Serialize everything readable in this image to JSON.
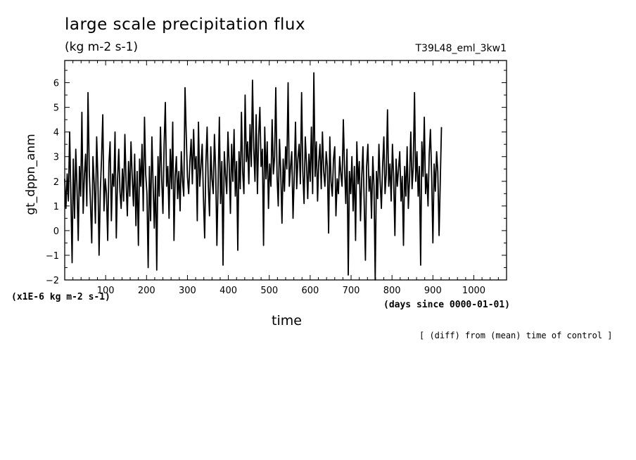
{
  "chart_data": {
    "type": "line",
    "title": "large scale precipitation flux",
    "units": "(kg m-2 s-1)",
    "run_label": "T39L48_eml_3kw1",
    "ylabel": "gt_dppn_anm",
    "xlabel": "time",
    "y_scale_label": "(x1E-6 kg m-2 s-1)",
    "x_units_label": "(days since 0000-01-01)",
    "note": "[ (diff) from (mean) time of control ]",
    "xlim": [
      0,
      1080
    ],
    "ylim": [
      -2,
      6.9
    ],
    "xticks": [
      100,
      200,
      300,
      400,
      500,
      600,
      700,
      800,
      900,
      1000
    ],
    "yticks": [
      -2,
      -1,
      0,
      1,
      2,
      3,
      4,
      5,
      6
    ],
    "grid": false,
    "series": [
      {
        "color": "#000000",
        "x_start": 0,
        "x_step": 3,
        "values": [
          2.1,
          0.9,
          2.3,
          1.2,
          4.0,
          1.5,
          -1.3,
          2.9,
          0.5,
          3.3,
          1.8,
          -0.4,
          2.6,
          1.4,
          4.8,
          0.7,
          2.2,
          3.1,
          1.0,
          5.6,
          2.4,
          1.1,
          -0.5,
          3.0,
          1.9,
          0.3,
          3.8,
          2.2,
          -1.0,
          1.6,
          2.9,
          4.7,
          0.8,
          2.1,
          1.5,
          -0.4,
          2.7,
          3.6,
          0.4,
          2.3,
          1.8,
          4.0,
          -0.3,
          2.0,
          3.3,
          1.6,
          0.9,
          2.5,
          1.2,
          3.9,
          2.0,
          0.6,
          2.8,
          1.4,
          3.6,
          2.2,
          1.0,
          3.1,
          0.2,
          2.4,
          -0.6,
          2.9,
          1.8,
          3.5,
          0.8,
          4.6,
          2.3,
          1.5,
          -1.5,
          2.6,
          0.4,
          3.8,
          1.9,
          0.1,
          2.2,
          -1.6,
          3.0,
          1.4,
          4.2,
          2.1,
          0.7,
          3.5,
          5.2,
          1.8,
          2.6,
          0.5,
          3.3,
          1.7,
          4.4,
          -0.4,
          2.2,
          3.0,
          1.3,
          2.4,
          0.8,
          3.2,
          2.0,
          1.4,
          5.8,
          3.9,
          2.2,
          1.5,
          2.8,
          3.7,
          1.9,
          4.1,
          2.5,
          3.0,
          0.4,
          4.4,
          1.8,
          2.6,
          3.5,
          1.4,
          -0.3,
          2.7,
          4.2,
          1.8,
          0.6,
          3.4,
          2.1,
          1.5,
          3.9,
          2.4,
          -0.6,
          2.0,
          4.6,
          1.1,
          2.8,
          -1.4,
          3.2,
          2.3,
          1.5,
          4.0,
          2.6,
          0.7,
          3.5,
          2.0,
          4.1,
          1.4,
          2.8,
          -0.8,
          3.2,
          1.7,
          4.8,
          2.4,
          1.5,
          5.5,
          2.8,
          3.6,
          1.9,
          4.3,
          2.6,
          6.1,
          3.4,
          2.0,
          4.7,
          1.5,
          3.8,
          5.0,
          2.6,
          3.3,
          -0.6,
          4.2,
          2.1,
          3.6,
          0.9,
          2.7,
          1.8,
          4.5,
          2.3,
          3.0,
          5.8,
          2.2,
          1.0,
          3.7,
          2.4,
          0.3,
          2.9,
          1.6,
          3.4,
          2.5,
          6.0,
          1.8,
          2.6,
          3.2,
          0.5,
          2.2,
          4.4,
          1.7,
          2.9,
          3.5,
          1.9,
          5.6,
          2.4,
          1.1,
          3.8,
          2.7,
          1.3,
          3.1,
          2.0,
          4.2,
          1.5,
          6.4,
          2.2,
          3.6,
          1.2,
          2.8,
          3.5,
          1.7,
          4.0,
          2.4,
          1.8,
          3.2,
          2.6,
          -0.1,
          3.8,
          2.0,
          1.4,
          2.9,
          3.4,
          0.6,
          2.1,
          1.5,
          3.0,
          2.3,
          1.8,
          4.5,
          2.6,
          1.1,
          3.3,
          -1.8,
          2.4,
          1.5,
          3.0,
          0.8,
          2.6,
          -0.4,
          3.6,
          1.9,
          2.8,
          0.4,
          2.2,
          3.4,
          1.2,
          -1.2,
          2.6,
          3.5,
          1.6,
          2.2,
          0.5,
          3.0,
          1.8,
          -2.0,
          2.4,
          1.3,
          3.5,
          2.0,
          0.9,
          2.6,
          3.8,
          1.5,
          2.3,
          4.9,
          1.8,
          2.7,
          1.2,
          3.5,
          2.2,
          -0.2,
          2.9,
          1.8,
          2.5,
          3.2,
          1.2,
          2.2,
          -0.6,
          2.6,
          1.4,
          3.4,
          0.9,
          2.2,
          4.0,
          1.7,
          2.6,
          5.6,
          2.0,
          3.2,
          1.4,
          2.6,
          -1.4,
          3.6,
          2.2,
          4.6,
          1.5,
          2.3,
          1.0,
          3.1,
          4.1,
          2.2,
          -0.5,
          2.7,
          1.6,
          3.2,
          2.4,
          -0.2,
          2.0,
          4.2
        ]
      }
    ]
  }
}
